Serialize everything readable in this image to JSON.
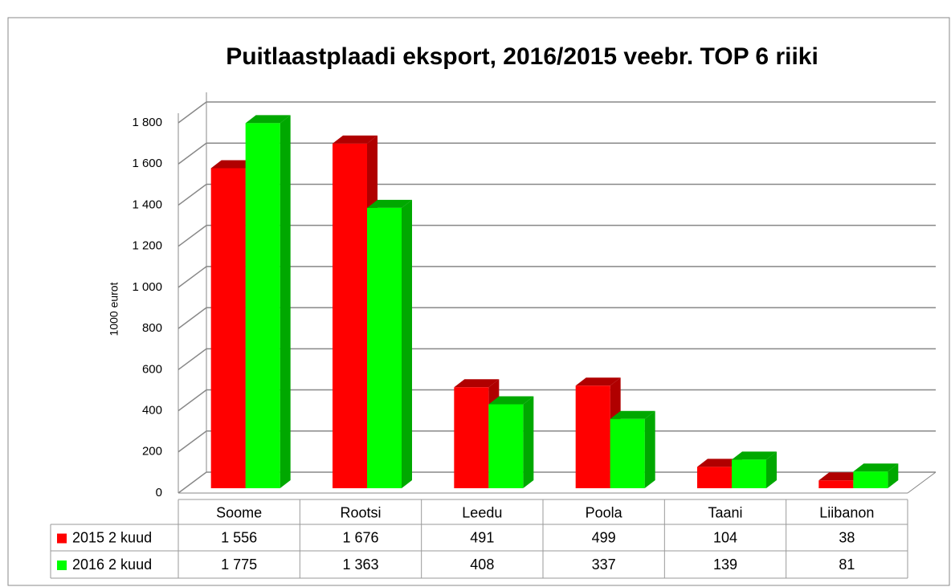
{
  "chart_data": {
    "type": "bar3d",
    "title": "Puitlaastplaadi eksport, 2016/2015 veebr. TOP 6 riiki",
    "ylabel": "1000 eurot",
    "categories": [
      "Soome",
      "Rootsi",
      "Leedu",
      "Poola",
      "Taani",
      "Liibanon"
    ],
    "series": [
      {
        "name": "2015 2 kuud",
        "color": "#ff0000",
        "side_color": "#b00000",
        "values": [
          1556,
          1676,
          491,
          499,
          104,
          38
        ],
        "value_labels": [
          "1 556",
          "1 676",
          "491",
          "499",
          "104",
          "38"
        ]
      },
      {
        "name": "2016 2 kuud",
        "color": "#00ff00",
        "side_color": "#00a800",
        "values": [
          1775,
          1363,
          408,
          337,
          139,
          81
        ],
        "value_labels": [
          "1 775",
          "1 363",
          "408",
          "337",
          "139",
          "81"
        ]
      }
    ],
    "ylim": [
      0,
      1800
    ],
    "yticks": [
      0,
      200,
      400,
      600,
      800,
      {
        "value": 1000,
        "label": "1 000"
      },
      {
        "value": 1200,
        "label": "1 200"
      },
      {
        "value": 1400,
        "label": "1 400"
      },
      {
        "value": 1600,
        "label": "1 600"
      },
      {
        "value": 1800,
        "label": "1 800"
      }
    ],
    "grid": true,
    "data_table": true
  }
}
